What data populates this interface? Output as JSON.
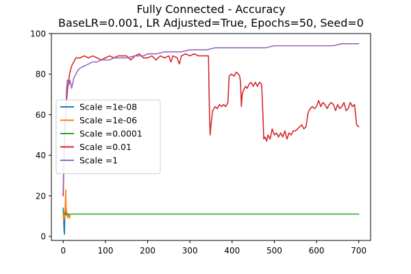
{
  "chart_data": {
    "type": "line",
    "title": "Fully Connected - Accuracy",
    "subtitle": "BaseLR=0.001, LR Adjusted=True, Epochs=50, Seed=0",
    "xlabel": "",
    "ylabel": "",
    "xlim": [
      -28,
      728
    ],
    "ylim": [
      -2,
      100
    ],
    "xticks": [
      0,
      100,
      200,
      300,
      400,
      500,
      600,
      700
    ],
    "yticks": [
      0,
      20,
      40,
      60,
      80,
      100
    ],
    "grid": false,
    "legend_position": "center-left",
    "series": [
      {
        "name": "Scale =1e-08",
        "color": "#1f77b4",
        "points": [
          [
            0,
            14
          ],
          [
            1,
            9
          ],
          [
            2,
            3
          ],
          [
            3,
            1
          ],
          [
            4,
            11
          ],
          [
            5,
            12
          ],
          [
            6,
            11
          ],
          [
            8,
            10.5
          ],
          [
            10,
            11
          ]
        ]
      },
      {
        "name": "Scale =1e-06",
        "color": "#ff7f0e",
        "points": [
          [
            0,
            10
          ],
          [
            1,
            8
          ],
          [
            2,
            12
          ],
          [
            3,
            9
          ],
          [
            4,
            12
          ],
          [
            5,
            16
          ],
          [
            6,
            23
          ],
          [
            7,
            12
          ],
          [
            8,
            13
          ],
          [
            9,
            10
          ],
          [
            10,
            11
          ],
          [
            11,
            9
          ],
          [
            12,
            11
          ],
          [
            13,
            10
          ],
          [
            14,
            11
          ],
          [
            15,
            9
          ],
          [
            16,
            10
          ],
          [
            17,
            10
          ]
        ]
      },
      {
        "name": "Scale =0.0001",
        "color": "#2ca02c",
        "points": [
          [
            0,
            12
          ],
          [
            3,
            11
          ],
          [
            6,
            11
          ],
          [
            9,
            11.2
          ],
          [
            12,
            11
          ],
          [
            15,
            10.8
          ],
          [
            20,
            11
          ],
          [
            40,
            11
          ],
          [
            100,
            11
          ],
          [
            200,
            11
          ],
          [
            300,
            11
          ],
          [
            400,
            11
          ],
          [
            500,
            11
          ],
          [
            600,
            11
          ],
          [
            700,
            11
          ]
        ]
      },
      {
        "name": "Scale =0.01",
        "color": "#d62728",
        "points": [
          [
            0,
            20
          ],
          [
            3,
            45
          ],
          [
            6,
            62
          ],
          [
            10,
            72
          ],
          [
            15,
            80
          ],
          [
            20,
            84
          ],
          [
            25,
            86
          ],
          [
            30,
            88
          ],
          [
            40,
            88
          ],
          [
            50,
            89
          ],
          [
            60,
            88
          ],
          [
            70,
            89
          ],
          [
            80,
            88
          ],
          [
            90,
            87
          ],
          [
            100,
            88
          ],
          [
            110,
            89
          ],
          [
            120,
            88
          ],
          [
            130,
            89
          ],
          [
            150,
            89
          ],
          [
            160,
            87
          ],
          [
            170,
            89
          ],
          [
            180,
            90
          ],
          [
            190,
            88
          ],
          [
            200,
            88
          ],
          [
            210,
            89
          ],
          [
            220,
            87
          ],
          [
            230,
            89
          ],
          [
            240,
            88
          ],
          [
            250,
            89
          ],
          [
            255,
            86
          ],
          [
            260,
            89
          ],
          [
            270,
            88
          ],
          [
            275,
            85
          ],
          [
            280,
            89
          ],
          [
            290,
            90
          ],
          [
            300,
            89
          ],
          [
            310,
            90
          ],
          [
            320,
            89
          ],
          [
            330,
            89
          ],
          [
            340,
            89
          ],
          [
            344,
            89
          ],
          [
            346,
            65
          ],
          [
            348,
            50
          ],
          [
            350,
            55
          ],
          [
            354,
            62
          ],
          [
            360,
            64
          ],
          [
            365,
            63
          ],
          [
            370,
            65
          ],
          [
            375,
            64
          ],
          [
            380,
            65
          ],
          [
            385,
            64
          ],
          [
            390,
            66
          ],
          [
            393,
            79
          ],
          [
            398,
            80
          ],
          [
            405,
            79
          ],
          [
            410,
            81
          ],
          [
            415,
            80
          ],
          [
            418,
            79
          ],
          [
            420,
            76
          ],
          [
            422,
            64
          ],
          [
            424,
            70
          ],
          [
            427,
            72
          ],
          [
            432,
            74
          ],
          [
            436,
            73
          ],
          [
            440,
            75
          ],
          [
            445,
            76
          ],
          [
            450,
            74
          ],
          [
            455,
            76
          ],
          [
            460,
            74
          ],
          [
            465,
            76
          ],
          [
            470,
            75
          ],
          [
            473,
            60
          ],
          [
            475,
            48
          ],
          [
            478,
            49
          ],
          [
            482,
            47
          ],
          [
            485,
            50
          ],
          [
            490,
            48
          ],
          [
            495,
            53
          ],
          [
            500,
            50
          ],
          [
            505,
            51
          ],
          [
            510,
            49
          ],
          [
            515,
            51
          ],
          [
            520,
            49
          ],
          [
            525,
            52
          ],
          [
            530,
            48
          ],
          [
            535,
            51
          ],
          [
            540,
            50
          ],
          [
            545,
            52
          ],
          [
            550,
            52
          ],
          [
            555,
            53
          ],
          [
            560,
            54
          ],
          [
            565,
            55
          ],
          [
            570,
            53
          ],
          [
            575,
            54
          ],
          [
            580,
            61
          ],
          [
            585,
            63
          ],
          [
            590,
            64
          ],
          [
            595,
            63
          ],
          [
            600,
            64
          ],
          [
            605,
            67
          ],
          [
            610,
            64
          ],
          [
            615,
            66
          ],
          [
            620,
            65
          ],
          [
            625,
            63
          ],
          [
            630,
            65
          ],
          [
            635,
            66
          ],
          [
            640,
            65
          ],
          [
            645,
            62
          ],
          [
            650,
            65
          ],
          [
            655,
            63
          ],
          [
            660,
            64
          ],
          [
            665,
            66
          ],
          [
            670,
            62
          ],
          [
            675,
            63
          ],
          [
            680,
            66
          ],
          [
            685,
            64
          ],
          [
            690,
            65
          ],
          [
            695,
            55
          ],
          [
            700,
            54
          ]
        ]
      },
      {
        "name": "Scale =1",
        "color": "#9467bd",
        "points": [
          [
            0,
            23
          ],
          [
            2,
            40
          ],
          [
            4,
            55
          ],
          [
            6,
            60
          ],
          [
            8,
            73
          ],
          [
            10,
            77
          ],
          [
            12,
            76
          ],
          [
            14,
            75
          ],
          [
            16,
            77
          ],
          [
            18,
            75
          ],
          [
            20,
            73
          ],
          [
            25,
            78
          ],
          [
            30,
            80
          ],
          [
            35,
            82
          ],
          [
            40,
            83
          ],
          [
            50,
            84
          ],
          [
            60,
            85
          ],
          [
            70,
            86
          ],
          [
            80,
            86
          ],
          [
            90,
            87
          ],
          [
            100,
            87
          ],
          [
            110,
            87
          ],
          [
            120,
            88
          ],
          [
            130,
            88
          ],
          [
            150,
            88
          ],
          [
            170,
            89
          ],
          [
            190,
            89
          ],
          [
            200,
            90
          ],
          [
            220,
            90
          ],
          [
            240,
            91
          ],
          [
            260,
            91
          ],
          [
            280,
            91
          ],
          [
            300,
            92
          ],
          [
            320,
            92
          ],
          [
            340,
            92
          ],
          [
            360,
            93
          ],
          [
            380,
            93
          ],
          [
            400,
            93
          ],
          [
            420,
            93
          ],
          [
            440,
            93
          ],
          [
            460,
            93
          ],
          [
            480,
            93
          ],
          [
            500,
            94
          ],
          [
            520,
            94
          ],
          [
            540,
            94
          ],
          [
            560,
            94
          ],
          [
            580,
            94
          ],
          [
            600,
            94
          ],
          [
            620,
            94
          ],
          [
            640,
            94
          ],
          [
            660,
            95
          ],
          [
            680,
            95
          ],
          [
            700,
            95
          ]
        ]
      }
    ]
  }
}
